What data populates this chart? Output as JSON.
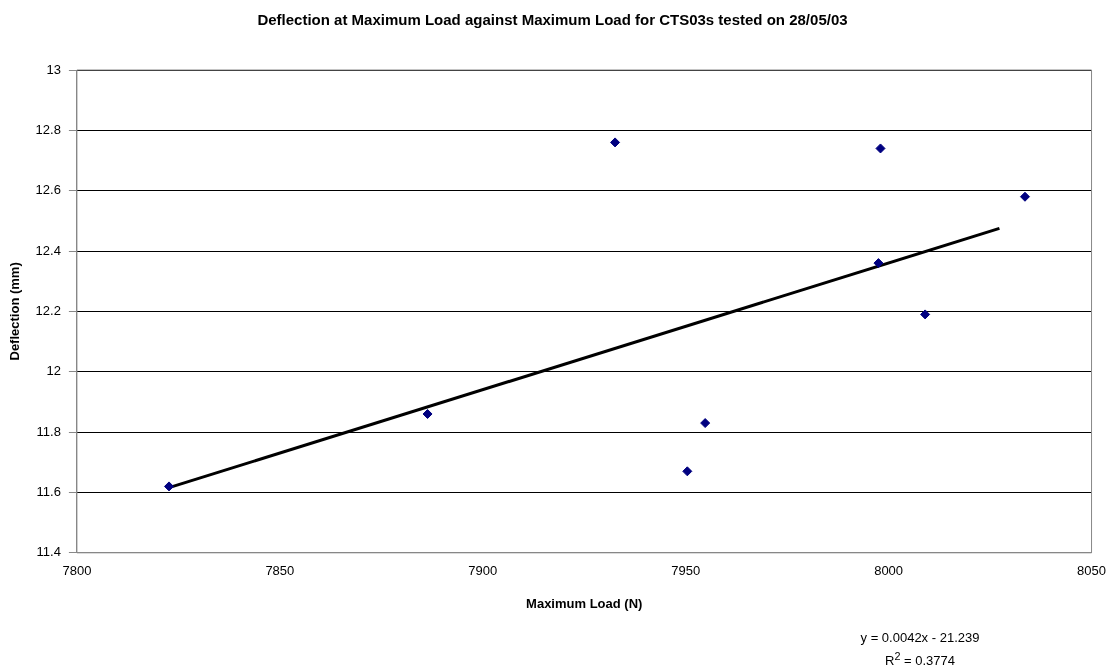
{
  "chart_data": {
    "type": "scatter",
    "title": "Deflection at Maximum Load against Maximum Load for CTS03s tested on 28/05/03",
    "xlabel": "Maximum Load (N)",
    "ylabel": "Deflection (mm)",
    "series": [
      {
        "marker": "diamond",
        "color": "#000080",
        "x": [
          7822.7,
          7886.4,
          7932.6,
          7950.4,
          7954.8,
          7998.0,
          7997.5,
          8009.0,
          8033.6
        ],
        "values": [
          11.62,
          11.86,
          12.76,
          11.67,
          11.83,
          12.74,
          12.36,
          12.19,
          12.58
        ]
      },
      {
        "type": "line",
        "color": "#000000",
        "x": [
          7822.7,
          8027.3
        ],
        "values": [
          11.616,
          12.475
        ]
      }
    ],
    "xlim": [
      7800,
      8050
    ],
    "xticks": [
      7800,
      7850,
      7900,
      7950,
      8000,
      8050
    ],
    "ylim": [
      11.4,
      13
    ],
    "yticks": [
      11.4,
      11.6,
      11.8,
      12,
      12.2,
      12.4,
      12.6,
      12.8,
      13
    ],
    "grid": "y",
    "legend": false,
    "annotations": [
      "y = 0.0042x - 21.239",
      "R$^{2}$ = 0.3774"
    ]
  }
}
